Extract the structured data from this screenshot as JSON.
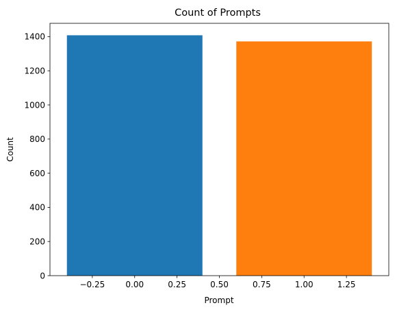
{
  "chart_data": {
    "type": "bar",
    "title": "Count of Prompts",
    "xlabel": "Prompt",
    "ylabel": "Count",
    "bars": [
      {
        "x": 0,
        "width": 0.8,
        "value": 1408,
        "color": "#1f77b4"
      },
      {
        "x": 1,
        "width": 0.8,
        "value": 1372,
        "color": "#ff7f0e"
      }
    ],
    "xlim": [
      -0.5,
      1.5
    ],
    "ylim": [
      0,
      1478
    ],
    "xticks": [
      -0.25,
      0.0,
      0.25,
      0.5,
      0.75,
      1.0,
      1.25
    ],
    "xtick_labels": [
      "−0.25",
      "0.00",
      "0.25",
      "0.50",
      "0.75",
      "1.00",
      "1.25"
    ],
    "yticks": [
      0,
      200,
      400,
      600,
      800,
      1000,
      1200,
      1400
    ],
    "ytick_labels": [
      "0",
      "200",
      "400",
      "600",
      "800",
      "1000",
      "1200",
      "1400"
    ],
    "grid": false,
    "legend": "none"
  }
}
